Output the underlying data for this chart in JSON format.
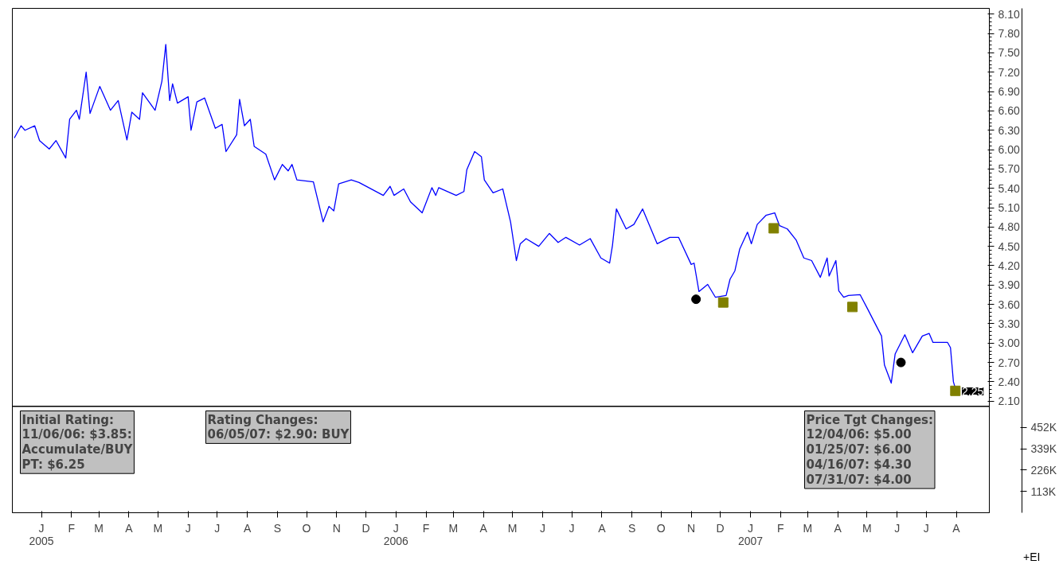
{
  "chart_data": {
    "type": "line",
    "xlim": [
      "2004-12-02",
      "2007-09-04"
    ],
    "ylim": [
      0.37,
      8.19
    ],
    "yticks": [
      {
        "value": 2.1,
        "label": "2.10"
      },
      {
        "value": 2.4,
        "label": "2.40"
      },
      {
        "value": 2.7,
        "label": "2.70"
      },
      {
        "value": 3.0,
        "label": "3.00"
      },
      {
        "value": 3.3,
        "label": "3.30"
      },
      {
        "value": 3.6,
        "label": "3.60"
      },
      {
        "value": 3.9,
        "label": "3.90"
      },
      {
        "value": 4.2,
        "label": "4.20"
      },
      {
        "value": 4.5,
        "label": "4.50"
      },
      {
        "value": 4.8,
        "label": "4.80"
      },
      {
        "value": 5.1,
        "label": "5.10"
      },
      {
        "value": 5.4,
        "label": "5.40"
      },
      {
        "value": 5.7,
        "label": "5.70"
      },
      {
        "value": 6.0,
        "label": "6.00"
      },
      {
        "value": 6.3,
        "label": "6.30"
      },
      {
        "value": 6.6,
        "label": "6.60"
      },
      {
        "value": 6.9,
        "label": "6.90"
      },
      {
        "value": 7.2,
        "label": "7.20"
      },
      {
        "value": 7.5,
        "label": "7.50"
      },
      {
        "value": 7.8,
        "label": "7.80"
      },
      {
        "value": 8.1,
        "label": "8.10"
      }
    ],
    "y2lim": [
      0,
      2676000
    ],
    "y2ticks": [
      {
        "value": 113000,
        "label": "113K"
      },
      {
        "value": 226000,
        "label": "226K"
      },
      {
        "value": 339000,
        "label": "339K"
      },
      {
        "value": 452000,
        "label": "452K"
      }
    ],
    "xticks": [
      {
        "value": "2005-01",
        "label": "J\n2005"
      },
      {
        "value": "2005-02",
        "label": "F"
      },
      {
        "value": "2005-03",
        "label": "M"
      },
      {
        "value": "2005-04",
        "label": "A"
      },
      {
        "value": "2005-05",
        "label": "M"
      },
      {
        "value": "2005-06",
        "label": "J"
      },
      {
        "value": "2005-07",
        "label": "J"
      },
      {
        "value": "2005-08",
        "label": "A"
      },
      {
        "value": "2005-09",
        "label": "S"
      },
      {
        "value": "2005-10",
        "label": "O"
      },
      {
        "value": "2005-11",
        "label": "N"
      },
      {
        "value": "2005-12",
        "label": "D"
      },
      {
        "value": "2006-01",
        "label": "J\n2006"
      },
      {
        "value": "2006-02",
        "label": "F"
      },
      {
        "value": "2006-03",
        "label": "M"
      },
      {
        "value": "2006-04",
        "label": "A"
      },
      {
        "value": "2006-05",
        "label": "M"
      },
      {
        "value": "2006-06",
        "label": "J"
      },
      {
        "value": "2006-07",
        "label": "J"
      },
      {
        "value": "2006-08",
        "label": "A"
      },
      {
        "value": "2006-09",
        "label": "S"
      },
      {
        "value": "2006-10",
        "label": "O"
      },
      {
        "value": "2006-11",
        "label": "N"
      },
      {
        "value": "2006-12",
        "label": "D"
      },
      {
        "value": "2007-01",
        "label": "J\n2007"
      },
      {
        "value": "2007-02",
        "label": "F"
      },
      {
        "value": "2007-03",
        "label": "M"
      },
      {
        "value": "2007-04",
        "label": "A"
      },
      {
        "value": "2007-05",
        "label": "M"
      },
      {
        "value": "2007-06",
        "label": "J"
      },
      {
        "value": "2007-07",
        "label": "J"
      },
      {
        "value": "2007-08",
        "label": "A"
      }
    ],
    "grid": false,
    "ref_lines": [
      {
        "axis": "y",
        "value": 2.02,
        "color": "#000000",
        "line_style": "solid"
      }
    ],
    "annotations": [
      {
        "text": "2.25",
        "x": "2007-08-01",
        "y": 2.25
      },
      "Initial Rating:\n11/06/06: $3.85:\nAccumulate/BUY\nPT: $6.25",
      "Rating Changes:\n06/05/07: $2.90: BUY",
      "Price Tgt Changes:\n12/04/06: $5.00\n01/25/07: $6.00\n04/16/07: $4.30\n07/31/07: $4.00",
      "+EI"
    ],
    "series": [
      {
        "type": "line",
        "color": "#0000ff",
        "line_style": "solid",
        "marker": "none",
        "x": [
          "2004-12-04",
          "2004-12-11",
          "2004-12-15",
          "2004-12-25",
          "2004-12-30",
          "2005-01-09",
          "2005-01-16",
          "2005-01-26",
          "2005-01-30",
          "2005-02-06",
          "2005-02-09",
          "2005-02-16",
          "2005-02-20",
          "2005-03-02",
          "2005-03-13",
          "2005-03-21",
          "2005-03-30",
          "2005-04-04",
          "2005-04-12",
          "2005-04-15",
          "2005-04-28",
          "2005-05-05",
          "2005-05-09",
          "2005-05-13",
          "2005-05-16",
          "2005-05-21",
          "2005-06-01",
          "2005-06-04",
          "2005-06-10",
          "2005-06-18",
          "2005-06-29",
          "2005-07-06",
          "2005-07-10",
          "2005-07-21",
          "2005-07-24",
          "2005-07-29",
          "2005-08-04",
          "2005-08-08",
          "2005-08-20",
          "2005-08-29",
          "2005-09-06",
          "2005-09-12",
          "2005-09-16",
          "2005-09-21",
          "2005-10-08",
          "2005-10-18",
          "2005-10-24",
          "2005-10-29",
          "2005-11-03",
          "2005-11-16",
          "2005-11-24",
          "2005-12-19",
          "2005-12-26",
          "2005-12-30",
          "2006-01-09",
          "2006-01-16",
          "2006-01-28",
          "2006-02-07",
          "2006-02-11",
          "2006-02-14",
          "2006-03-04",
          "2006-03-12",
          "2006-03-15",
          "2006-03-23",
          "2006-03-30",
          "2006-04-02",
          "2006-04-11",
          "2006-04-21",
          "2006-04-29",
          "2006-05-05",
          "2006-05-09",
          "2006-05-15",
          "2006-05-28",
          "2006-06-08",
          "2006-06-17",
          "2006-06-25",
          "2006-07-09",
          "2006-07-20",
          "2006-07-31",
          "2006-08-09",
          "2006-08-12",
          "2006-08-16",
          "2006-08-26",
          "2006-09-03",
          "2006-09-12",
          "2006-09-27",
          "2006-10-10",
          "2006-10-19",
          "2006-11-01",
          "2006-11-04",
          "2006-11-09",
          "2006-11-18",
          "2006-11-26",
          "2006-12-07",
          "2006-12-11",
          "2006-12-16",
          "2006-12-21",
          "2006-12-29",
          "2007-01-02",
          "2007-01-08",
          "2007-01-17",
          "2007-01-26",
          "2007-01-31",
          "2007-02-08",
          "2007-02-17",
          "2007-02-25",
          "2007-03-05",
          "2007-03-14",
          "2007-03-21",
          "2007-03-23",
          "2007-03-30",
          "2007-04-02",
          "2007-04-07",
          "2007-04-12",
          "2007-04-24",
          "2007-05-02",
          "2007-05-16",
          "2007-05-19",
          "2007-05-26",
          "2007-05-30",
          "2007-06-09",
          "2007-06-17",
          "2007-06-27",
          "2007-07-04",
          "2007-07-08",
          "2007-07-23",
          "2007-07-26",
          "2007-07-29",
          "2007-08-01"
        ],
        "values": [
          6.18,
          6.37,
          6.3,
          6.37,
          6.14,
          6.01,
          6.14,
          5.87,
          6.47,
          6.61,
          6.47,
          7.2,
          6.56,
          6.98,
          6.61,
          6.76,
          6.15,
          6.58,
          6.47,
          6.88,
          6.61,
          7.06,
          7.63,
          6.76,
          7.02,
          6.72,
          6.82,
          6.3,
          6.74,
          6.8,
          6.33,
          6.39,
          5.97,
          6.23,
          6.78,
          6.37,
          6.47,
          6.05,
          5.93,
          5.53,
          5.77,
          5.67,
          5.77,
          5.53,
          5.5,
          4.88,
          5.12,
          5.05,
          5.47,
          5.53,
          5.49,
          5.29,
          5.43,
          5.29,
          5.39,
          5.19,
          5.02,
          5.41,
          5.29,
          5.41,
          5.29,
          5.35,
          5.69,
          5.97,
          5.89,
          5.53,
          5.33,
          5.39,
          4.88,
          4.28,
          4.54,
          4.62,
          4.5,
          4.7,
          4.56,
          4.64,
          4.52,
          4.62,
          4.32,
          4.24,
          4.52,
          5.08,
          4.77,
          4.84,
          5.08,
          4.54,
          4.64,
          4.64,
          4.22,
          4.24,
          3.8,
          3.91,
          3.71,
          3.74,
          3.99,
          4.12,
          4.46,
          4.72,
          4.54,
          4.84,
          4.98,
          5.02,
          4.82,
          4.77,
          4.6,
          4.32,
          4.28,
          4.02,
          4.32,
          4.04,
          4.28,
          3.81,
          3.71,
          3.74,
          3.75,
          3.52,
          3.11,
          2.66,
          2.38,
          2.83,
          3.13,
          2.85,
          3.11,
          3.15,
          3.01,
          3.01,
          2.93,
          2.4,
          2.25
        ]
      },
      {
        "type": "scatter",
        "color": "#000000",
        "marker": "circle",
        "x": [
          "2006-11-06",
          "2007-06-05"
        ],
        "values": [
          3.68,
          2.7
        ]
      },
      {
        "type": "scatter",
        "color": "#808000",
        "marker": "square",
        "x": [
          "2006-12-04",
          "2007-01-25",
          "2007-04-16",
          "2007-07-31"
        ],
        "values": [
          3.63,
          4.78,
          3.56,
          2.26
        ]
      }
    ]
  }
}
